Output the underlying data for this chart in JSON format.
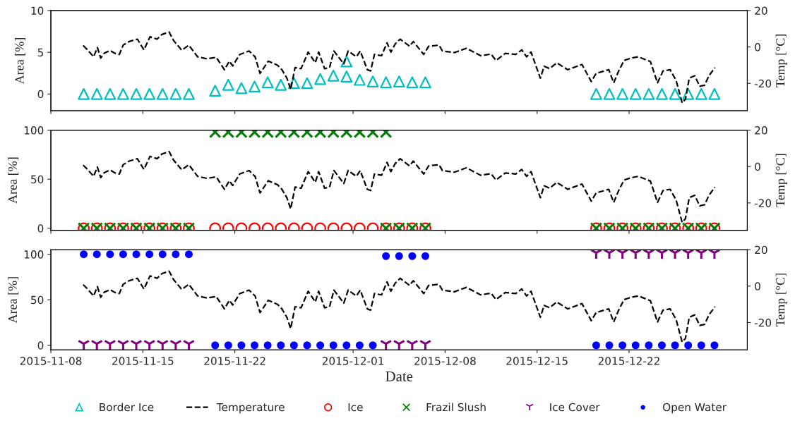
{
  "chart_data": [
    {
      "type": "scatter",
      "ylabel": "Area [%]",
      "y2label": "Temp [°C]",
      "xlim": [
        "2015-11-08",
        "2015-12-31"
      ],
      "xticks": [
        "2015-11-08",
        "2015-11-15",
        "2015-11-22",
        "2015-12-01",
        "2015-12-08",
        "2015-12-15",
        "2015-12-22"
      ],
      "ylim": [
        -2,
        10
      ],
      "yticks": [
        0,
        5,
        10
      ],
      "y2lim": [
        -35,
        20
      ],
      "y2ticks": [
        -20,
        0,
        20
      ],
      "tick_labels": "y",
      "grid": false,
      "legend": "bottom",
      "series": [
        {
          "name": "Border Ice",
          "marker": "triangle",
          "color": "#00bfbf",
          "x": [
            "2015-11-10T12:00",
            "2015-11-11T12:00",
            "2015-11-12T12:00",
            "2015-11-13T12:00",
            "2015-11-14T12:00",
            "2015-11-15T12:00",
            "2015-11-16T12:00",
            "2015-11-17T12:00",
            "2015-11-18T12:00",
            "2015-11-20T12:00",
            "2015-11-21T12:00",
            "2015-11-22T12:00",
            "2015-11-23T12:00",
            "2015-11-24T12:00",
            "2015-11-25T12:00",
            "2015-11-26T12:00",
            "2015-11-27T12:00",
            "2015-11-28T12:00",
            "2015-11-29T12:00",
            "2015-11-30T12:00",
            "2015-12-01T12:00",
            "2015-12-02T12:00",
            "2015-12-03T12:00",
            "2015-12-04T12:00",
            "2015-12-05T12:00",
            "2015-12-06T12:00",
            "2015-11-30T12:00",
            "2015-12-19T12:00",
            "2015-12-20T12:00",
            "2015-12-21T12:00",
            "2015-12-22T12:00",
            "2015-12-23T12:00",
            "2015-12-24T12:00",
            "2015-12-25T12:00",
            "2015-12-26T12:00",
            "2015-12-27T12:00",
            "2015-12-28T12:00"
          ],
          "values": [
            0,
            0,
            0,
            0,
            0,
            0,
            0,
            0,
            0,
            0.4,
            1.1,
            0.7,
            0.9,
            1.4,
            1.1,
            1.3,
            1.3,
            1.8,
            2.2,
            2.1,
            1.7,
            1.5,
            1.4,
            1.5,
            1.4,
            1.4,
            3.9,
            0,
            0,
            0,
            0,
            0,
            0,
            0,
            0,
            0,
            0
          ]
        },
        {
          "name": "Temperature",
          "type": "line",
          "axis": "y2",
          "marker": "none",
          "line_style": "dashed",
          "color": "#000000",
          "x": [
            "2015-11-10T11:00",
            "2015-11-10T19:00",
            "2015-11-11T06:00",
            "2015-11-11T13:00",
            "2015-11-11T19:00",
            "2015-11-12T01:00",
            "2015-11-12T12:00",
            "2015-11-12T21:00",
            "2015-11-13T05:00",
            "2015-11-13T12:00",
            "2015-11-13T23:00",
            "2015-11-14T14:00",
            "2015-11-15T02:00",
            "2015-11-15T13:00",
            "2015-11-16T02:00",
            "2015-11-16T11:00",
            "2015-11-17T00:00",
            "2015-11-17T08:00",
            "2015-11-17T23:00",
            "2015-11-18T12:00",
            "2015-11-19T04:00",
            "2015-11-19T21:00",
            "2015-11-20T14:00",
            "2015-11-21T05:00",
            "2015-11-21T14:00",
            "2015-11-21T20:00",
            "2015-11-22T09:00",
            "2015-11-23T02:00",
            "2015-11-23T13:00",
            "2015-11-23T22:00",
            "2015-11-24T04:00",
            "2015-11-24T13:00",
            "2015-11-25T06:00",
            "2015-11-25T14:00",
            "2015-11-25T23:00",
            "2015-11-26T06:00",
            "2015-11-26T14:00",
            "2015-11-27T01:00",
            "2015-11-27T14:00",
            "2015-11-28T03:00",
            "2015-11-28T09:00",
            "2015-11-28T20:00",
            "2015-11-29T05:00",
            "2015-11-29T13:00",
            "2015-11-30T07:00",
            "2015-11-30T15:00",
            "2015-12-01T06:00",
            "2015-12-01T13:00",
            "2015-12-02T02:00",
            "2015-12-02T08:00",
            "2015-12-02T15:00",
            "2015-12-03T04:00",
            "2015-12-03T14:00",
            "2015-12-03T21:00",
            "2015-12-04T05:00",
            "2015-12-04T14:00",
            "2015-12-05T07:00",
            "2015-12-05T14:00",
            "2015-12-06T09:00",
            "2015-12-06T18:00",
            "2015-12-07T13:00",
            "2015-12-07T19:00",
            "2015-12-08T17:00",
            "2015-12-09T15:00",
            "2015-12-10T17:00",
            "2015-12-11T12:00",
            "2015-12-11T21:00",
            "2015-12-12T14:00",
            "2015-12-13T09:00",
            "2015-12-13T20:00",
            "2015-12-14T05:00",
            "2015-12-14T13:00",
            "2015-12-14T20:00",
            "2015-12-15T06:00",
            "2015-12-15T13:00",
            "2015-12-15T23:00",
            "2015-12-16T12:00",
            "2015-12-17T08:00",
            "2015-12-18T10:00",
            "2015-12-19T03:00",
            "2015-12-19T12:00",
            "2015-12-20T11:00",
            "2015-12-20T20:00",
            "2015-12-21T05:00",
            "2015-12-21T15:00",
            "2015-12-22T04:00",
            "2015-12-22T17:00",
            "2015-12-23T15:00",
            "2015-12-24T04:00",
            "2015-12-24T14:00",
            "2015-12-25T03:00",
            "2015-12-25T14:00",
            "2015-12-26T01:00",
            "2015-12-26T07:00",
            "2015-12-26T14:00",
            "2015-12-27T00:00",
            "2015-12-27T09:00",
            "2015-12-27T18:00",
            "2015-12-28T02:00",
            "2015-12-28T13:00"
          ],
          "values": [
            0.8,
            -1.6,
            -5.4,
            -0.3,
            -6.1,
            -3.5,
            -1.9,
            -3.5,
            -4.1,
            1,
            3,
            4.3,
            -1.6,
            5.6,
            4.3,
            6.9,
            8.2,
            3.6,
            -1.8,
            1,
            -5.4,
            -6.5,
            -5.7,
            -12.5,
            -7.8,
            -10.4,
            -4.1,
            -2.2,
            -5.4,
            -14.5,
            -11.9,
            -7.8,
            -10,
            -12.5,
            -17.1,
            -23.3,
            -11.3,
            -11.9,
            -2.8,
            -8.7,
            -2.8,
            -11.9,
            -11.3,
            -2.2,
            -9.3,
            -2.2,
            -5.4,
            -2.2,
            -12.5,
            -13.2,
            -4.1,
            -4.8,
            2.3,
            -2.8,
            1.7,
            4.3,
            0.4,
            3,
            -4.1,
            0.4,
            1,
            -2.2,
            -3.1,
            -0.7,
            -4.8,
            -3.9,
            -7.4,
            -3.5,
            -4.1,
            -1.6,
            -5.4,
            -2.8,
            -8.7,
            -17.1,
            -10.6,
            -11.9,
            -8.7,
            -12.5,
            -9.6,
            -19,
            -14.5,
            -12.5,
            -19.7,
            -13.2,
            -7.4,
            -6.1,
            -5.4,
            -8,
            -19.7,
            -13.2,
            -12.5,
            -18.4,
            -30.7,
            -28.7,
            -17.1,
            -15.8,
            -21.6,
            -21,
            -15.8,
            -11.3
          ]
        }
      ]
    },
    {
      "type": "scatter",
      "ylabel": "Area [%]",
      "y2label": "Temp [°C]",
      "xlim": [
        "2015-11-08",
        "2015-12-31"
      ],
      "xticks": [
        "2015-11-08",
        "2015-11-15",
        "2015-11-22",
        "2015-12-01",
        "2015-12-08",
        "2015-12-15",
        "2015-12-22"
      ],
      "ylim": [
        -2,
        100
      ],
      "yticks": [
        0,
        50,
        100
      ],
      "y2lim": [
        -35,
        20
      ],
      "y2ticks": [
        -20,
        0,
        20
      ],
      "tick_labels": "y",
      "grid": false,
      "legend": "bottom",
      "series": [
        {
          "name": "Ice",
          "marker": "circle",
          "color": "#ff0000",
          "x": [
            "2015-11-10T12:00",
            "2015-11-11T12:00",
            "2015-11-12T12:00",
            "2015-11-13T12:00",
            "2015-11-14T12:00",
            "2015-11-15T12:00",
            "2015-11-16T12:00",
            "2015-11-17T12:00",
            "2015-11-18T12:00",
            "2015-11-20T12:00",
            "2015-11-21T12:00",
            "2015-11-22T12:00",
            "2015-11-23T12:00",
            "2015-11-24T12:00",
            "2015-11-25T12:00",
            "2015-11-26T12:00",
            "2015-11-27T12:00",
            "2015-11-28T12:00",
            "2015-11-29T12:00",
            "2015-11-30T12:00",
            "2015-12-01T12:00",
            "2015-12-02T12:00",
            "2015-12-03T12:00",
            "2015-12-04T12:00",
            "2015-12-05T12:00",
            "2015-12-06T12:00",
            "2015-12-19T12:00",
            "2015-12-20T12:00",
            "2015-12-21T12:00",
            "2015-12-22T12:00",
            "2015-12-23T12:00",
            "2015-12-24T12:00",
            "2015-12-25T12:00",
            "2015-12-26T12:00",
            "2015-12-27T12:00",
            "2015-12-28T12:00"
          ],
          "values": [
            0,
            0,
            0,
            0,
            0,
            0,
            0,
            0,
            0,
            0,
            0,
            0,
            0,
            0,
            0,
            0,
            0,
            0,
            0,
            0,
            0,
            0,
            0,
            0,
            0,
            0,
            0,
            0,
            0,
            0,
            0,
            0,
            0,
            0,
            0,
            0
          ]
        },
        {
          "name": "Frazil Slush",
          "marker": "cross",
          "color": "#008000",
          "x": [
            "2015-11-10T12:00",
            "2015-11-11T12:00",
            "2015-11-12T12:00",
            "2015-11-13T12:00",
            "2015-11-14T12:00",
            "2015-11-15T12:00",
            "2015-11-16T12:00",
            "2015-11-17T12:00",
            "2015-11-18T12:00",
            "2015-11-20T12:00",
            "2015-11-21T12:00",
            "2015-11-22T12:00",
            "2015-11-23T12:00",
            "2015-11-24T12:00",
            "2015-11-25T12:00",
            "2015-11-26T12:00",
            "2015-11-27T12:00",
            "2015-11-28T12:00",
            "2015-11-29T12:00",
            "2015-11-30T12:00",
            "2015-12-01T12:00",
            "2015-12-02T12:00",
            "2015-12-03T12:00",
            "2015-12-03T12:00",
            "2015-12-04T12:00",
            "2015-12-05T12:00",
            "2015-12-06T12:00",
            "2015-12-19T12:00",
            "2015-12-20T12:00",
            "2015-12-21T12:00",
            "2015-12-22T12:00",
            "2015-12-23T12:00",
            "2015-12-24T12:00",
            "2015-12-25T12:00",
            "2015-12-26T12:00",
            "2015-12-27T12:00",
            "2015-12-28T12:00"
          ],
          "values": [
            0,
            0,
            0,
            0,
            0,
            0,
            0,
            0,
            0,
            98,
            98,
            98,
            98,
            98,
            98,
            98,
            98,
            98,
            98,
            98,
            98,
            98,
            98,
            0,
            0,
            0,
            0,
            0,
            0,
            0,
            0,
            0,
            0,
            0,
            0,
            0,
            0
          ]
        },
        {
          "name": "Temperature",
          "type": "line",
          "axis": "y2",
          "marker": "none",
          "line_style": "dashed",
          "color": "#000000",
          "x": [
            "2015-11-10T11:00",
            "2015-11-10T19:00",
            "2015-11-11T06:00",
            "2015-11-11T13:00",
            "2015-11-11T19:00",
            "2015-11-12T01:00",
            "2015-11-12T12:00",
            "2015-11-12T21:00",
            "2015-11-13T05:00",
            "2015-11-13T12:00",
            "2015-11-13T23:00",
            "2015-11-14T14:00",
            "2015-11-15T02:00",
            "2015-11-15T13:00",
            "2015-11-16T02:00",
            "2015-11-16T11:00",
            "2015-11-17T00:00",
            "2015-11-17T08:00",
            "2015-11-17T23:00",
            "2015-11-18T12:00",
            "2015-11-19T04:00",
            "2015-11-19T21:00",
            "2015-11-20T14:00",
            "2015-11-21T05:00",
            "2015-11-21T14:00",
            "2015-11-21T20:00",
            "2015-11-22T09:00",
            "2015-11-23T02:00",
            "2015-11-23T13:00",
            "2015-11-23T22:00",
            "2015-11-24T04:00",
            "2015-11-24T13:00",
            "2015-11-25T06:00",
            "2015-11-25T14:00",
            "2015-11-25T23:00",
            "2015-11-26T06:00",
            "2015-11-26T14:00",
            "2015-11-27T01:00",
            "2015-11-27T14:00",
            "2015-11-28T03:00",
            "2015-11-28T09:00",
            "2015-11-28T20:00",
            "2015-11-29T05:00",
            "2015-11-29T13:00",
            "2015-11-30T07:00",
            "2015-11-30T15:00",
            "2015-12-01T06:00",
            "2015-12-01T13:00",
            "2015-12-02T02:00",
            "2015-12-02T08:00",
            "2015-12-02T15:00",
            "2015-12-03T04:00",
            "2015-12-03T14:00",
            "2015-12-03T21:00",
            "2015-12-04T05:00",
            "2015-12-04T14:00",
            "2015-12-05T07:00",
            "2015-12-05T14:00",
            "2015-12-06T09:00",
            "2015-12-06T18:00",
            "2015-12-07T13:00",
            "2015-12-07T19:00",
            "2015-12-08T17:00",
            "2015-12-09T15:00",
            "2015-12-10T17:00",
            "2015-12-11T12:00",
            "2015-12-11T21:00",
            "2015-12-12T14:00",
            "2015-12-13T09:00",
            "2015-12-13T20:00",
            "2015-12-14T05:00",
            "2015-12-14T13:00",
            "2015-12-14T20:00",
            "2015-12-15T06:00",
            "2015-12-15T13:00",
            "2015-12-15T23:00",
            "2015-12-16T12:00",
            "2015-12-17T08:00",
            "2015-12-18T10:00",
            "2015-12-19T03:00",
            "2015-12-19T12:00",
            "2015-12-20T11:00",
            "2015-12-20T20:00",
            "2015-12-21T05:00",
            "2015-12-21T15:00",
            "2015-12-22T04:00",
            "2015-12-22T17:00",
            "2015-12-23T15:00",
            "2015-12-24T04:00",
            "2015-12-24T14:00",
            "2015-12-25T03:00",
            "2015-12-25T14:00",
            "2015-12-26T01:00",
            "2015-12-26T07:00",
            "2015-12-26T14:00",
            "2015-12-27T00:00",
            "2015-12-27T09:00",
            "2015-12-27T18:00",
            "2015-12-28T02:00",
            "2015-12-28T13:00"
          ],
          "values": [
            0.8,
            -1.6,
            -5.4,
            -0.3,
            -6.1,
            -3.5,
            -1.9,
            -3.5,
            -4.1,
            1,
            3,
            4.3,
            -1.6,
            5.6,
            4.3,
            6.9,
            8.2,
            3.6,
            -1.8,
            1,
            -5.4,
            -6.5,
            -5.7,
            -12.5,
            -7.8,
            -10.4,
            -4.1,
            -2.2,
            -5.4,
            -14.5,
            -11.9,
            -7.8,
            -10,
            -12.5,
            -17.1,
            -23.3,
            -11.3,
            -11.9,
            -2.8,
            -8.7,
            -2.8,
            -11.9,
            -11.3,
            -2.2,
            -9.3,
            -2.2,
            -5.4,
            -2.2,
            -12.5,
            -13.2,
            -4.1,
            -4.8,
            2.3,
            -2.8,
            1.7,
            4.3,
            0.4,
            3,
            -4.1,
            0.4,
            1,
            -2.2,
            -3.1,
            -0.7,
            -4.8,
            -3.9,
            -7.4,
            -3.5,
            -4.1,
            -1.6,
            -5.4,
            -2.8,
            -8.7,
            -17.1,
            -10.6,
            -11.9,
            -8.7,
            -12.5,
            -9.6,
            -19,
            -14.5,
            -12.5,
            -19.7,
            -13.2,
            -7.4,
            -6.1,
            -5.4,
            -8,
            -19.7,
            -13.2,
            -12.5,
            -18.4,
            -30.7,
            -28.7,
            -17.1,
            -15.8,
            -21.6,
            -21,
            -15.8,
            -11.3
          ]
        }
      ]
    },
    {
      "type": "scatter",
      "xlabel": "Date",
      "ylabel": "Area [%]",
      "y2label": "Temp [°C]",
      "xlim": [
        "2015-11-08",
        "2015-12-31"
      ],
      "xticks": [
        "2015-11-08",
        "2015-11-15",
        "2015-11-22",
        "2015-12-01",
        "2015-12-08",
        "2015-12-15",
        "2015-12-22"
      ],
      "ylim": [
        -5,
        105
      ],
      "yticks": [
        0,
        50,
        100
      ],
      "y2lim": [
        -35,
        20
      ],
      "y2ticks": [
        -20,
        0,
        20
      ],
      "grid": false,
      "legend": "bottom",
      "series": [
        {
          "name": "Ice Cover",
          "color": "#800080",
          "x": [
            "2015-11-10T12:00",
            "2015-11-11T12:00",
            "2015-11-12T12:00",
            "2015-11-13T12:00",
            "2015-11-14T12:00",
            "2015-11-15T12:00",
            "2015-11-16T12:00",
            "2015-11-17T12:00",
            "2015-11-18T12:00",
            "2015-12-03T12:00",
            "2015-12-04T12:00",
            "2015-12-05T12:00",
            "2015-12-06T12:00",
            "2015-12-19T12:00",
            "2015-12-20T12:00",
            "2015-12-21T12:00",
            "2015-12-22T12:00",
            "2015-12-23T12:00",
            "2015-12-24T12:00",
            "2015-12-25T12:00",
            "2015-12-26T12:00",
            "2015-12-27T12:00",
            "2015-12-28T12:00"
          ],
          "values": [
            0,
            0,
            0,
            0,
            0,
            0,
            0,
            0,
            0,
            0,
            0,
            0,
            0,
            100,
            100,
            100,
            100,
            100,
            100,
            100,
            100,
            100,
            100
          ]
        },
        {
          "name": "Open Water",
          "marker": "point",
          "color": "#0000ff",
          "x": [
            "2015-11-10T12:00",
            "2015-11-11T12:00",
            "2015-11-12T12:00",
            "2015-11-13T12:00",
            "2015-11-14T12:00",
            "2015-11-15T12:00",
            "2015-11-16T12:00",
            "2015-11-17T12:00",
            "2015-11-18T12:00",
            "2015-11-20T12:00",
            "2015-11-21T12:00",
            "2015-11-22T12:00",
            "2015-11-23T12:00",
            "2015-11-24T12:00",
            "2015-11-25T12:00",
            "2015-11-26T12:00",
            "2015-11-27T12:00",
            "2015-11-28T12:00",
            "2015-11-29T12:00",
            "2015-11-30T12:00",
            "2015-12-01T12:00",
            "2015-12-02T12:00",
            "2015-12-03T12:00",
            "2015-12-04T12:00",
            "2015-12-05T12:00",
            "2015-12-06T12:00",
            "2015-12-19T12:00",
            "2015-12-20T12:00",
            "2015-12-21T12:00",
            "2015-12-22T12:00",
            "2015-12-23T12:00",
            "2015-12-24T12:00",
            "2015-12-25T12:00",
            "2015-12-26T12:00",
            "2015-12-27T12:00",
            "2015-12-28T12:00"
          ],
          "values": [
            100,
            100,
            100,
            100,
            100,
            100,
            100,
            100,
            100,
            0,
            0,
            0,
            0,
            0,
            0,
            0,
            0,
            0,
            0,
            0,
            0,
            0,
            98,
            98,
            98,
            98,
            0,
            0,
            0,
            0,
            0,
            0,
            0,
            0,
            0,
            0
          ]
        },
        {
          "name": "Temperature",
          "type": "line",
          "axis": "y2",
          "marker": "none",
          "line_style": "dashed",
          "color": "#000000",
          "x": [
            "2015-11-10T11:00",
            "2015-11-10T19:00",
            "2015-11-11T06:00",
            "2015-11-11T13:00",
            "2015-11-11T19:00",
            "2015-11-12T01:00",
            "2015-11-12T12:00",
            "2015-11-12T21:00",
            "2015-11-13T05:00",
            "2015-11-13T12:00",
            "2015-11-13T23:00",
            "2015-11-14T14:00",
            "2015-11-15T02:00",
            "2015-11-15T13:00",
            "2015-11-16T02:00",
            "2015-11-16T11:00",
            "2015-11-17T00:00",
            "2015-11-17T08:00",
            "2015-11-17T23:00",
            "2015-11-18T12:00",
            "2015-11-19T04:00",
            "2015-11-19T21:00",
            "2015-11-20T14:00",
            "2015-11-21T05:00",
            "2015-11-21T14:00",
            "2015-11-21T20:00",
            "2015-11-22T09:00",
            "2015-11-23T02:00",
            "2015-11-23T13:00",
            "2015-11-23T22:00",
            "2015-11-24T04:00",
            "2015-11-24T13:00",
            "2015-11-25T06:00",
            "2015-11-25T14:00",
            "2015-11-25T23:00",
            "2015-11-26T06:00",
            "2015-11-26T14:00",
            "2015-11-27T01:00",
            "2015-11-27T14:00",
            "2015-11-28T03:00",
            "2015-11-28T09:00",
            "2015-11-28T20:00",
            "2015-11-29T05:00",
            "2015-11-29T13:00",
            "2015-11-30T07:00",
            "2015-11-30T15:00",
            "2015-12-01T06:00",
            "2015-12-01T13:00",
            "2015-12-02T02:00",
            "2015-12-02T08:00",
            "2015-12-02T15:00",
            "2015-12-03T04:00",
            "2015-12-03T14:00",
            "2015-12-03T21:00",
            "2015-12-04T05:00",
            "2015-12-04T14:00",
            "2015-12-05T07:00",
            "2015-12-05T14:00",
            "2015-12-06T09:00",
            "2015-12-06T18:00",
            "2015-12-07T13:00",
            "2015-12-07T19:00",
            "2015-12-08T17:00",
            "2015-12-09T15:00",
            "2015-12-10T17:00",
            "2015-12-11T12:00",
            "2015-12-11T21:00",
            "2015-12-12T14:00",
            "2015-12-13T09:00",
            "2015-12-13T20:00",
            "2015-12-14T05:00",
            "2015-12-14T13:00",
            "2015-12-14T20:00",
            "2015-12-15T06:00",
            "2015-12-15T13:00",
            "2015-12-15T23:00",
            "2015-12-16T12:00",
            "2015-12-17T08:00",
            "2015-12-18T10:00",
            "2015-12-19T03:00",
            "2015-12-19T12:00",
            "2015-12-20T11:00",
            "2015-12-20T20:00",
            "2015-12-21T05:00",
            "2015-12-21T15:00",
            "2015-12-22T04:00",
            "2015-12-22T17:00",
            "2015-12-23T15:00",
            "2015-12-24T04:00",
            "2015-12-24T14:00",
            "2015-12-25T03:00",
            "2015-12-25T14:00",
            "2015-12-26T01:00",
            "2015-12-26T07:00",
            "2015-12-26T14:00",
            "2015-12-27T00:00",
            "2015-12-27T09:00",
            "2015-12-27T18:00",
            "2015-12-28T02:00",
            "2015-12-28T13:00"
          ],
          "values": [
            0.8,
            -1.6,
            -5.4,
            -0.3,
            -6.1,
            -3.5,
            -1.9,
            -3.5,
            -4.1,
            1,
            3,
            4.3,
            -1.6,
            5.6,
            4.3,
            6.9,
            8.2,
            3.6,
            -1.8,
            1,
            -5.4,
            -6.5,
            -5.7,
            -12.5,
            -7.8,
            -10.4,
            -4.1,
            -2.2,
            -5.4,
            -14.5,
            -11.9,
            -7.8,
            -10,
            -12.5,
            -17.1,
            -23.3,
            -11.3,
            -11.9,
            -2.8,
            -8.7,
            -2.8,
            -11.9,
            -11.3,
            -2.2,
            -9.3,
            -2.2,
            -5.4,
            -2.2,
            -12.5,
            -13.2,
            -4.1,
            -4.8,
            2.3,
            -2.8,
            1.7,
            4.3,
            0.4,
            3,
            -4.1,
            0.4,
            1,
            -2.2,
            -3.1,
            -0.7,
            -4.8,
            -3.9,
            -7.4,
            -3.5,
            -4.1,
            -1.6,
            -5.4,
            -2.8,
            -8.7,
            -17.1,
            -10.6,
            -11.9,
            -8.7,
            -12.5,
            -9.6,
            -19,
            -14.5,
            -12.5,
            -19.7,
            -13.2,
            -7.4,
            -6.1,
            -5.4,
            -8,
            -19.7,
            -13.2,
            -12.5,
            -18.4,
            -30.7,
            -28.7,
            -17.1,
            -15.8,
            -21.6,
            -21,
            -15.8,
            -11.3
          ]
        }
      ]
    }
  ]
}
